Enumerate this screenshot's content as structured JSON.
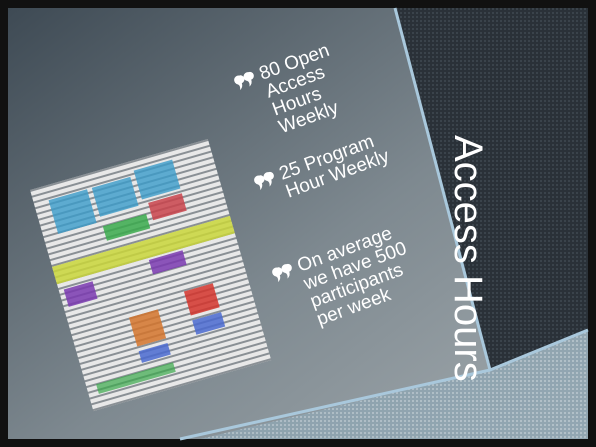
{
  "slide": {
    "title": "Access Hours",
    "bullets": [
      {
        "lines": [
          "80 Open",
          "Access",
          "Hours",
          "Weekly"
        ]
      },
      {
        "lines": [
          "25 Program",
          "Hour Weekly"
        ]
      },
      {
        "lines": [
          "On average",
          "we have 500",
          "participants",
          "per week"
        ]
      }
    ]
  }
}
